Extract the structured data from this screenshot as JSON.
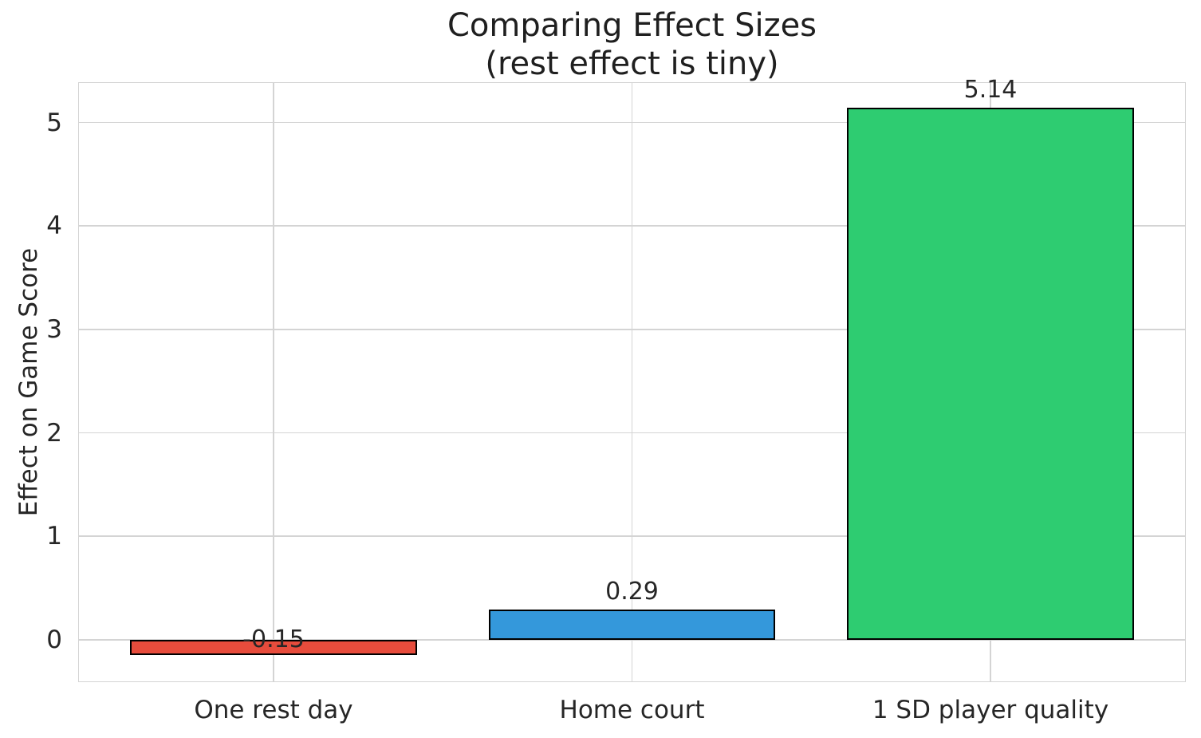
{
  "figure": {
    "title_line1": "Comparing Effect Sizes",
    "title_line2": "(rest effect is tiny)"
  },
  "chart_data": {
    "type": "bar",
    "title": "Comparing Effect Sizes\n(rest effect is tiny)",
    "xlabel": "",
    "ylabel": "Effect on Game Score",
    "categories": [
      "One rest day",
      "Home court",
      "1 SD player quality"
    ],
    "values": [
      -0.15,
      0.29,
      5.14
    ],
    "bar_labels": [
      "-0.15",
      "0.29",
      "5.14"
    ],
    "bar_colors": [
      "#e74c3c",
      "#3498db",
      "#2ecc71"
    ],
    "bar_edge_color": "#000000",
    "bar_width": 0.8,
    "yticks": [
      0,
      1,
      2,
      3,
      4,
      5
    ],
    "ylim": [
      -0.41,
      5.39
    ],
    "xlim": [
      -0.545,
      2.545
    ],
    "grid": true,
    "legend": null,
    "grid_color": "#d4d4d4",
    "text_color": "#262626",
    "background": "#ffffff"
  }
}
